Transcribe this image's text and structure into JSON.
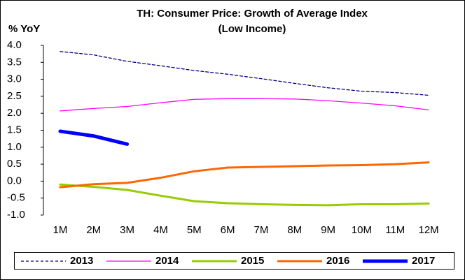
{
  "chart_data": {
    "type": "line",
    "title": "TH: Consumer Price: Growth of Average Index",
    "subtitle": "(Low Income)",
    "y_label": "% YoY",
    "categories": [
      "1M",
      "2M",
      "3M",
      "4M",
      "5M",
      "6M",
      "7M",
      "8M",
      "9M",
      "10M",
      "11M",
      "12M"
    ],
    "series": [
      {
        "name": "2013",
        "color": "#000080",
        "dash": true,
        "values": [
          3.82,
          3.72,
          3.53,
          3.4,
          3.26,
          3.15,
          3.02,
          2.88,
          2.75,
          2.65,
          2.61,
          2.53
        ]
      },
      {
        "name": "2014",
        "color": "#ff00ff",
        "values": [
          2.07,
          2.14,
          2.2,
          2.31,
          2.41,
          2.43,
          2.43,
          2.42,
          2.37,
          2.3,
          2.22,
          2.1
        ]
      },
      {
        "name": "2015",
        "color": "#99cc00",
        "values": [
          -0.1,
          -0.17,
          -0.26,
          -0.43,
          -0.59,
          -0.65,
          -0.68,
          -0.7,
          -0.71,
          -0.68,
          -0.68,
          -0.66
        ]
      },
      {
        "name": "2016",
        "color": "#ff6600",
        "values": [
          -0.18,
          -0.09,
          -0.05,
          0.1,
          0.29,
          0.4,
          0.42,
          0.44,
          0.46,
          0.47,
          0.5,
          0.55
        ]
      },
      {
        "name": "2017",
        "color": "#0000ff",
        "values": [
          1.47,
          1.33,
          1.09,
          null,
          null,
          null,
          null,
          null,
          null,
          null,
          null,
          null
        ]
      }
    ],
    "ylim": [
      -1.0,
      4.0
    ],
    "yticks": [
      {
        "value": 4.0,
        "label": "4.0"
      },
      3.5,
      {
        "value": 3.0,
        "label": "3.0"
      },
      2.5,
      {
        "value": 2.0,
        "label": "2.0"
      },
      1.5,
      {
        "value": 1.0,
        "label": "1.0"
      },
      0.5,
      {
        "value": 0.0,
        "label": "0.0"
      },
      -0.5,
      {
        "value": -1.0,
        "label": "-1.0"
      }
    ],
    "legend": "bottom"
  }
}
